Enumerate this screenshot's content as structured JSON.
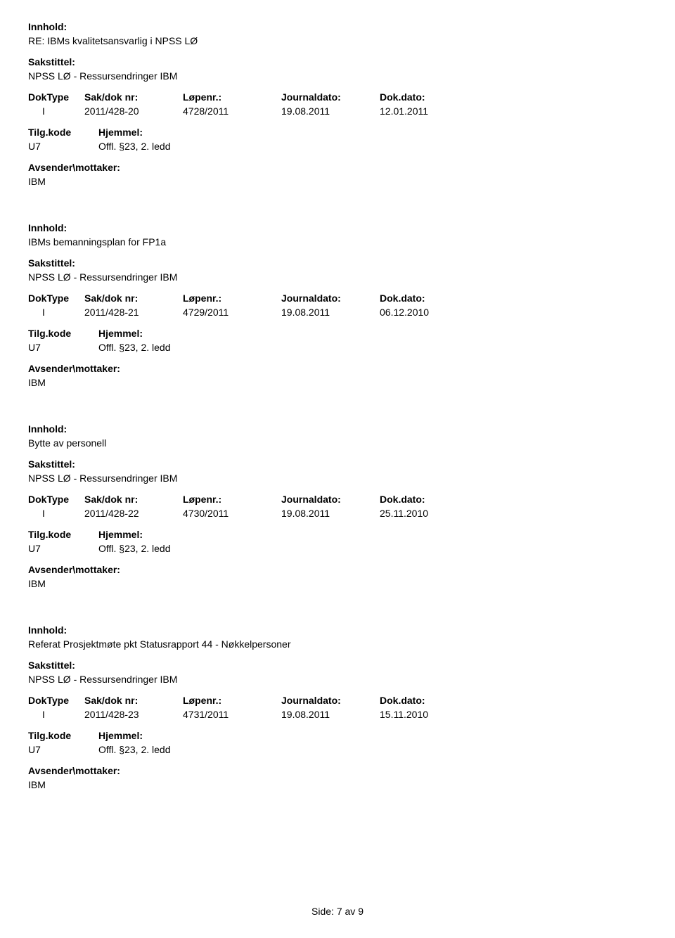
{
  "labels": {
    "innhold": "Innhold:",
    "sakstittel": "Sakstittel:",
    "doktype": "DokType",
    "sakdoknr": "Sak/dok nr:",
    "lopenr": "Løpenr.:",
    "journaldato": "Journaldato:",
    "dokdato": "Dok.dato:",
    "tilgkode": "Tilg.kode",
    "hjemmel": "Hjemmel:",
    "avsender": "Avsender\\mottaker:"
  },
  "records": [
    {
      "innhold": "RE: IBMs kvalitetsansvarlig i NPSS LØ",
      "sakstittel": "NPSS LØ - Ressursendringer IBM",
      "doktype": "I",
      "sakdoknr": "2011/428-20",
      "lopenr": "4728/2011",
      "journaldato": "19.08.2011",
      "dokdato": "12.01.2011",
      "tilgkode": "U7",
      "hjemmel": "Offl. §23, 2. ledd",
      "avsender": "IBM"
    },
    {
      "innhold": "IBMs bemanningsplan for FP1a",
      "sakstittel": "NPSS LØ - Ressursendringer IBM",
      "doktype": "I",
      "sakdoknr": "2011/428-21",
      "lopenr": "4729/2011",
      "journaldato": "19.08.2011",
      "dokdato": "06.12.2010",
      "tilgkode": "U7",
      "hjemmel": "Offl. §23, 2. ledd",
      "avsender": "IBM"
    },
    {
      "innhold": "Bytte av personell",
      "sakstittel": "NPSS LØ - Ressursendringer IBM",
      "doktype": "I",
      "sakdoknr": "2011/428-22",
      "lopenr": "4730/2011",
      "journaldato": "19.08.2011",
      "dokdato": "25.11.2010",
      "tilgkode": "U7",
      "hjemmel": "Offl. §23, 2. ledd",
      "avsender": "IBM"
    },
    {
      "innhold": "Referat Prosjektmøte pkt Statusrapport 44 - Nøkkelpersoner",
      "sakstittel": "NPSS LØ - Ressursendringer IBM",
      "doktype": "I",
      "sakdoknr": "2011/428-23",
      "lopenr": "4731/2011",
      "journaldato": "19.08.2011",
      "dokdato": "15.11.2010",
      "tilgkode": "U7",
      "hjemmel": "Offl. §23, 2. ledd",
      "avsender": "IBM"
    }
  ],
  "footer": {
    "side_label": "Side:",
    "page_current": "7",
    "page_sep": "av",
    "page_total": "9"
  }
}
